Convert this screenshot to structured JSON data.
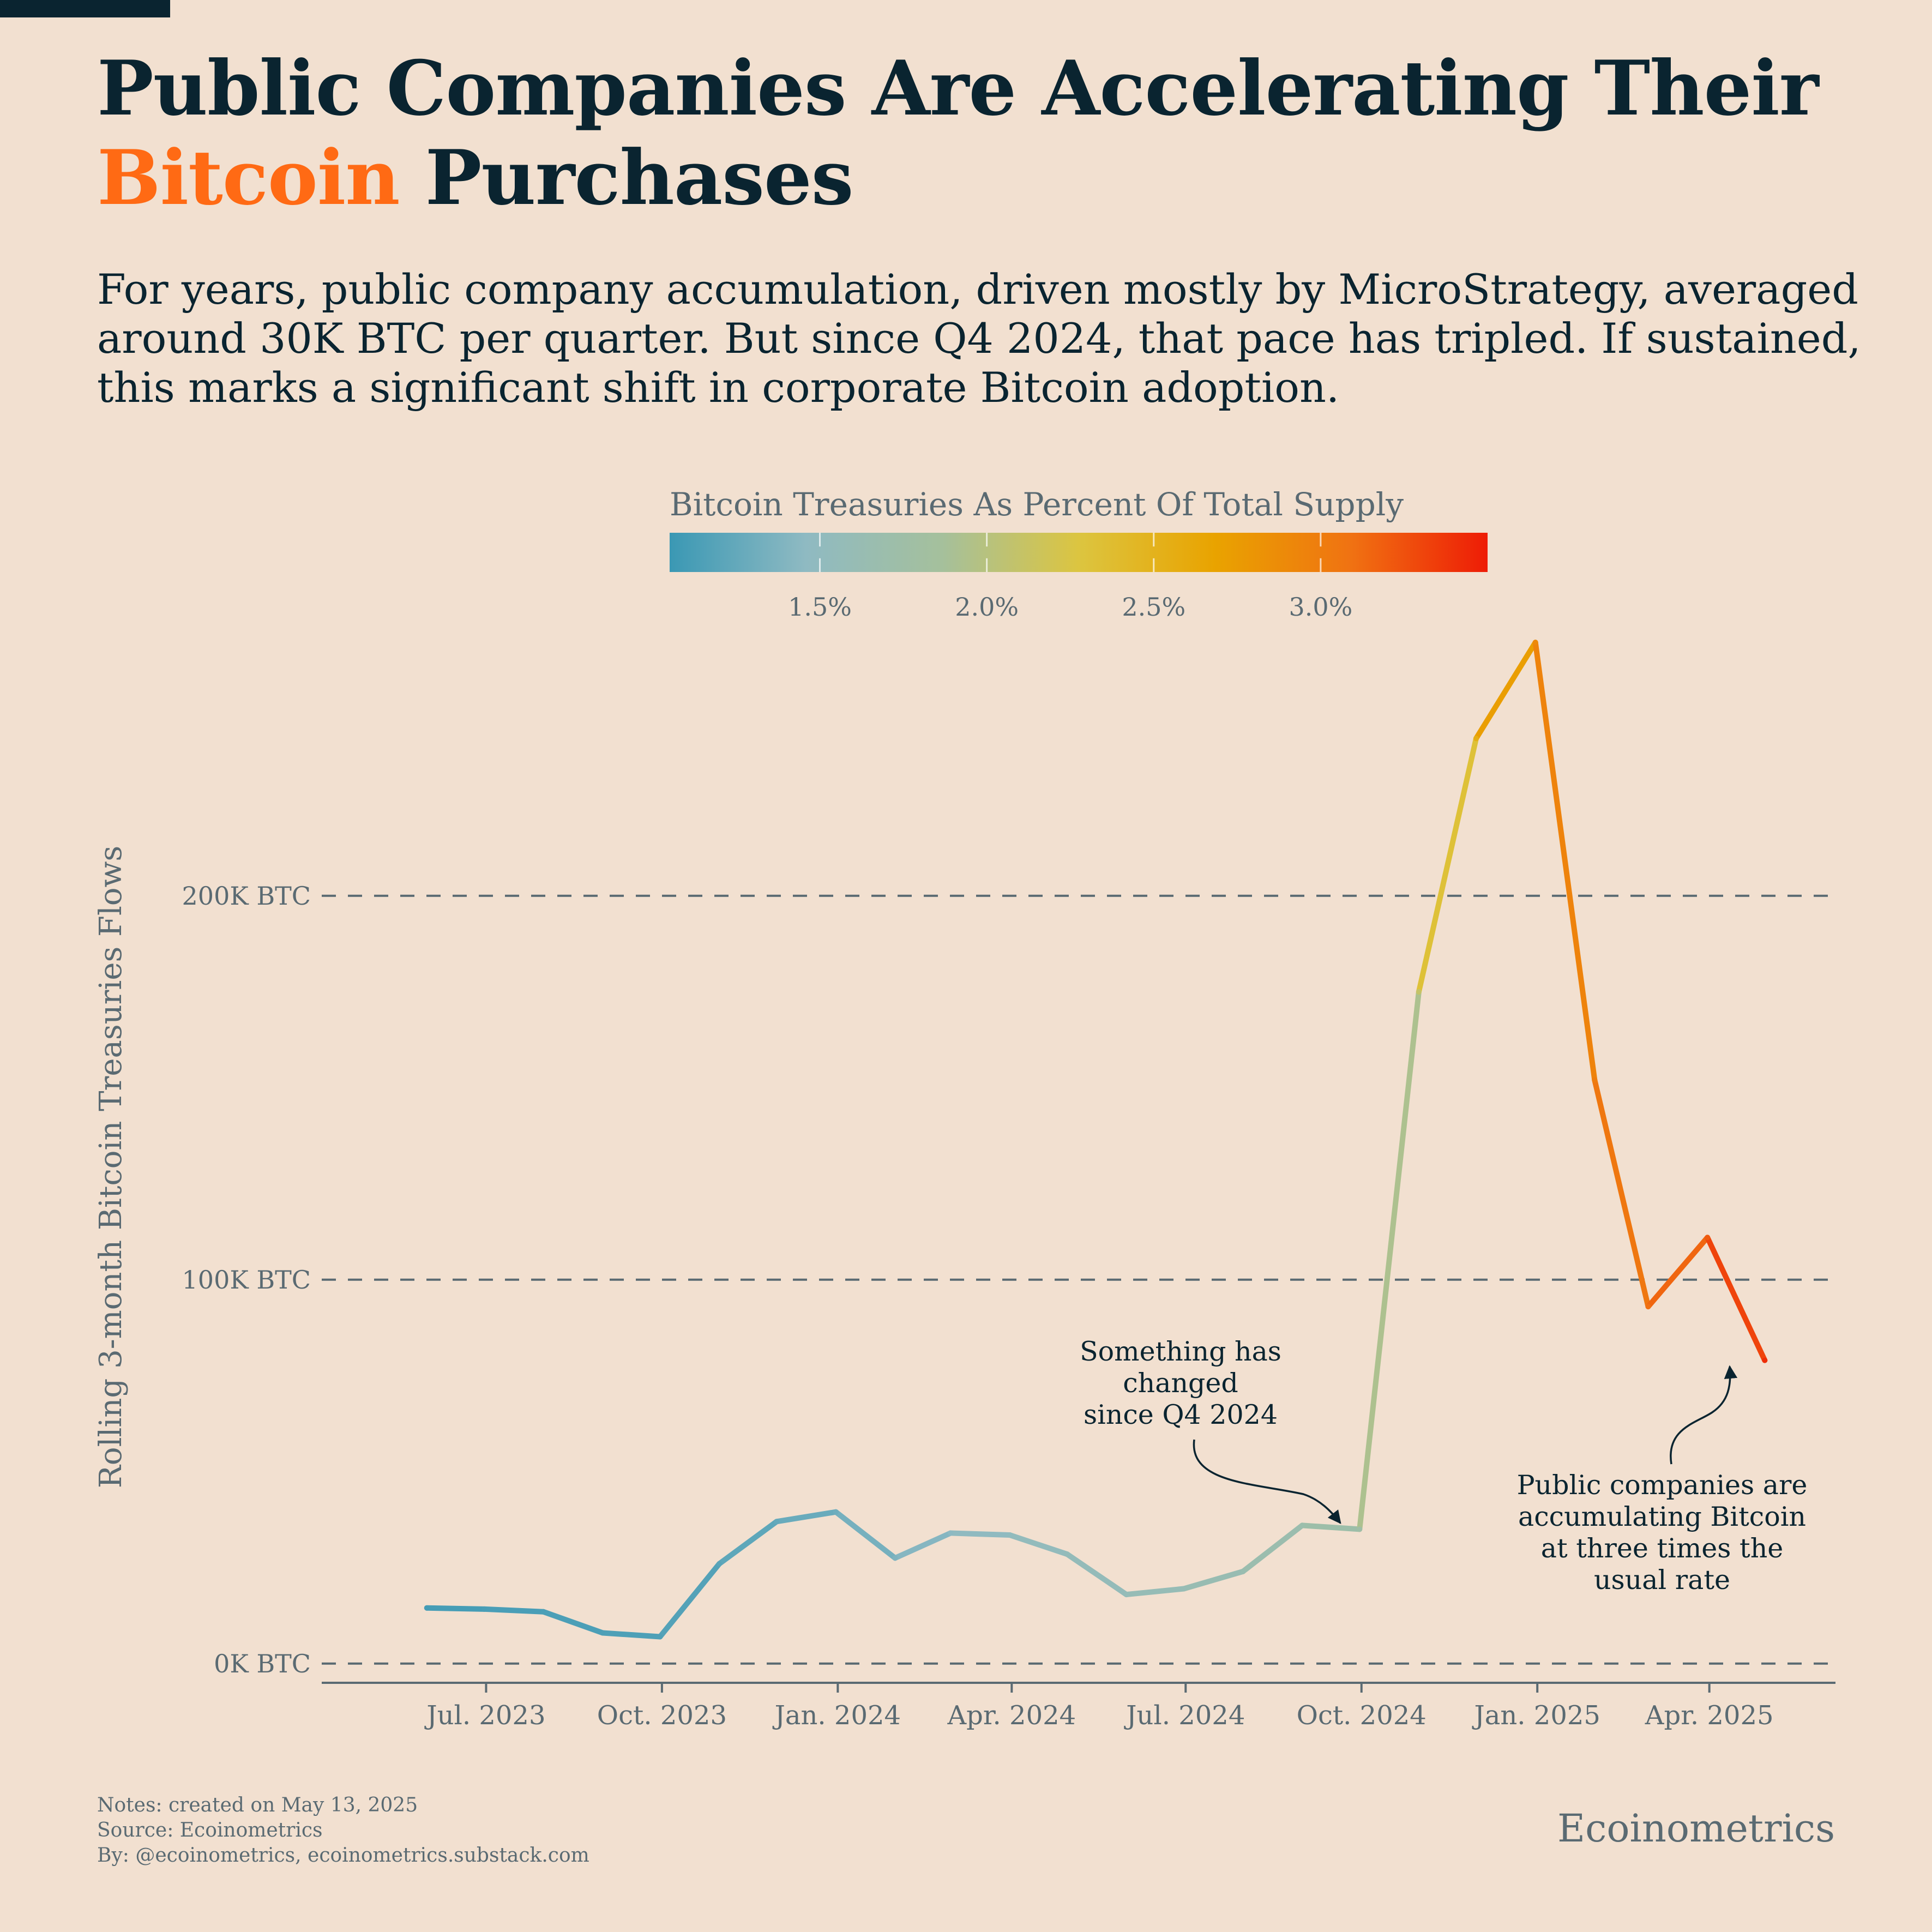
{
  "header": {
    "title_part1": "Public Companies Are Accelerating Their",
    "title_accent": "Bitcoin",
    "title_part2": "Purchases",
    "subtitle": "For years, public company accumulation, driven mostly by MicroStrategy, averaged around 30K BTC per quarter. But since Q4 2024, that pace has tripled. If sustained, this marks a significant shift in corporate Bitcoin adoption."
  },
  "colors": {
    "background": "#f2e0d0",
    "title": "#0a2430",
    "accent": "#ff6a14",
    "muted": "#5a6a72",
    "colorscale": [
      "#3a98b4",
      "#8fbac2",
      "#a5c09c",
      "#dcc540",
      "#e9a300",
      "#f07212",
      "#ee1c06"
    ]
  },
  "legend": {
    "title": "Bitcoin Treasuries As Percent Of Total Supply",
    "min_pct": 1.05,
    "max_pct": 3.5,
    "ticks": [
      {
        "value": 1.5,
        "label": "1.5%"
      },
      {
        "value": 2.0,
        "label": "2.0%"
      },
      {
        "value": 2.5,
        "label": "2.5%"
      },
      {
        "value": 3.0,
        "label": "3.0%"
      }
    ]
  },
  "chart_data": {
    "type": "line",
    "ylabel": "Rolling 3-month Bitcoin Treasuries Flows",
    "xlabel": "",
    "ylim": [
      -5000,
      270000
    ],
    "xlim": [
      "2023-04-06",
      "2025-06-06"
    ],
    "y_ticks": [
      {
        "value": 0,
        "label": "0K BTC"
      },
      {
        "value": 100000,
        "label": "100K BTC"
      },
      {
        "value": 200000,
        "label": "200K BTC"
      }
    ],
    "x_ticks": [
      {
        "date": "2023-07-01",
        "label": "Jul. 2023"
      },
      {
        "date": "2023-10-01",
        "label": "Oct. 2023"
      },
      {
        "date": "2024-01-01",
        "label": "Jan. 2024"
      },
      {
        "date": "2024-04-01",
        "label": "Apr. 2024"
      },
      {
        "date": "2024-07-01",
        "label": "Jul. 2024"
      },
      {
        "date": "2024-10-01",
        "label": "Oct. 2024"
      },
      {
        "date": "2025-01-01",
        "label": "Jan. 2025"
      },
      {
        "date": "2025-04-01",
        "label": "Apr. 2025"
      }
    ],
    "grid": "horizontal dashed",
    "legend": "colorbar top-center",
    "series": [
      {
        "points": [
          {
            "date": "2023-05-31",
            "btc": 14500,
            "pct": 1.1
          },
          {
            "date": "2023-06-30",
            "btc": 14200,
            "pct": 1.12
          },
          {
            "date": "2023-07-31",
            "btc": 13500,
            "pct": 1.13
          },
          {
            "date": "2023-08-31",
            "btc": 8000,
            "pct": 1.14
          },
          {
            "date": "2023-09-30",
            "btc": 7000,
            "pct": 1.15
          },
          {
            "date": "2023-10-31",
            "btc": 26000,
            "pct": 1.2
          },
          {
            "date": "2023-11-30",
            "btc": 37000,
            "pct": 1.25
          },
          {
            "date": "2023-12-31",
            "btc": 39500,
            "pct": 1.3
          },
          {
            "date": "2024-01-31",
            "btc": 27500,
            "pct": 1.38
          },
          {
            "date": "2024-02-29",
            "btc": 34000,
            "pct": 1.45
          },
          {
            "date": "2024-03-31",
            "btc": 33500,
            "pct": 1.5
          },
          {
            "date": "2024-04-30",
            "btc": 28500,
            "pct": 1.55
          },
          {
            "date": "2024-05-31",
            "btc": 18000,
            "pct": 1.57
          },
          {
            "date": "2024-06-30",
            "btc": 19500,
            "pct": 1.6
          },
          {
            "date": "2024-07-31",
            "btc": 24000,
            "pct": 1.65
          },
          {
            "date": "2024-08-31",
            "btc": 36000,
            "pct": 1.7
          },
          {
            "date": "2024-09-30",
            "btc": 35000,
            "pct": 1.75
          },
          {
            "date": "2024-10-31",
            "btc": 175000,
            "pct": 2.1
          },
          {
            "date": "2024-11-30",
            "btc": 241000,
            "pct": 2.55
          },
          {
            "date": "2024-12-31",
            "btc": 266000,
            "pct": 2.9
          },
          {
            "date": "2025-01-31",
            "btc": 152000,
            "pct": 3.0
          },
          {
            "date": "2025-02-28",
            "btc": 93000,
            "pct": 3.1
          },
          {
            "date": "2025-03-31",
            "btc": 111000,
            "pct": 3.2
          },
          {
            "date": "2025-04-30",
            "btc": 79000,
            "pct": 3.42
          }
        ]
      }
    ],
    "annotations": [
      {
        "lines": [
          "Something has",
          "changed",
          "since Q4 2024"
        ]
      },
      {
        "lines": [
          "Public companies are",
          "accumulating Bitcoin",
          "at three times the",
          "usual rate"
        ]
      }
    ]
  },
  "footer": {
    "notes": "Notes: created on May 13, 2025",
    "source": "Source: Ecoinometrics",
    "by": "By: @ecoinometrics, ecoinometrics.substack.com"
  },
  "brand": "Ecoinometrics"
}
